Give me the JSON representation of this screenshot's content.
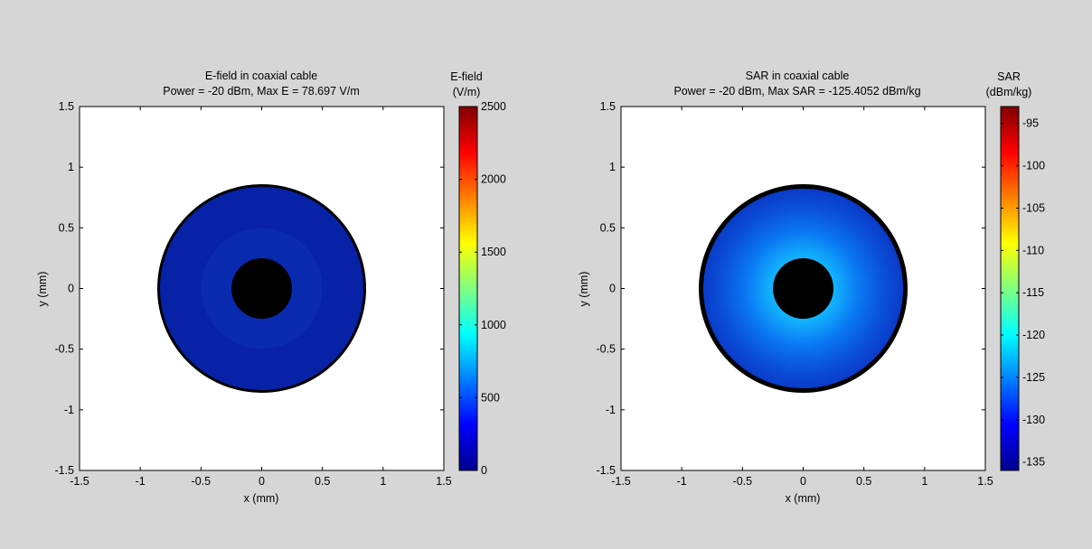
{
  "chart_data": [
    {
      "type": "heatmap",
      "title": "E-field in coaxial cable",
      "subtitle": "Power = -20 dBm, Max E = 78.697 V/m",
      "xlabel": "x (mm)",
      "ylabel": "y (mm)",
      "xlim": [
        -1.5,
        1.5
      ],
      "ylim": [
        -1.5,
        1.5
      ],
      "xticks": [
        "-1.5",
        "-1",
        "-0.5",
        "0",
        "0.5",
        "1",
        "1.5"
      ],
      "yticks": [
        "-1.5",
        "-1",
        "-0.5",
        "0",
        "0.5",
        "1",
        "1.5"
      ],
      "colorbar": {
        "title_line1": "E-field",
        "title_line2": "(V/m)",
        "range": [
          0,
          2500
        ],
        "ticks": [
          "0",
          "500",
          "1000",
          "1500",
          "2000",
          "2500"
        ],
        "colormap": "jet"
      },
      "inner_conductor_radius_mm": 0.25,
      "outer_conductor_radius_mm": 0.85,
      "field_levels": [
        {
          "r_mm": 0.85,
          "value": 45,
          "color": "#0722a6"
        },
        {
          "r_mm": 0.5,
          "value": 62,
          "color": "#0a2ab0"
        }
      ]
    },
    {
      "type": "heatmap",
      "title": "SAR in coaxial cable",
      "subtitle": "Power = -20 dBm, Max SAR = -125.4052 dBm/kg",
      "xlabel": "x (mm)",
      "ylabel": "y (mm)",
      "xlim": [
        -1.5,
        1.5
      ],
      "ylim": [
        -1.5,
        1.5
      ],
      "xticks": [
        "-1.5",
        "-1",
        "-0.5",
        "0",
        "0.5",
        "1",
        "1.5"
      ],
      "yticks": [
        "-1.5",
        "-1",
        "-0.5",
        "0",
        "0.5",
        "1",
        "1.5"
      ],
      "colorbar": {
        "title_line1": "SAR",
        "title_line2": "(dBm/kg)",
        "range": [
          -136,
          -93
        ],
        "ticks": [
          "-135",
          "-130",
          "-125",
          "-120",
          "-115",
          "-110",
          "-105",
          "-100",
          "-95"
        ],
        "colormap": "jet"
      },
      "inner_conductor_radius_mm": 0.25,
      "outer_conductor_radius_mm": 0.85,
      "field_gradient": [
        {
          "r_mm": 0.25,
          "value": -125.4,
          "color": "#12b4ff"
        },
        {
          "r_mm": 0.5,
          "value": -131,
          "color": "#0a5fe8"
        },
        {
          "r_mm": 0.85,
          "value": -135,
          "color": "#0a3ccc"
        }
      ]
    }
  ]
}
